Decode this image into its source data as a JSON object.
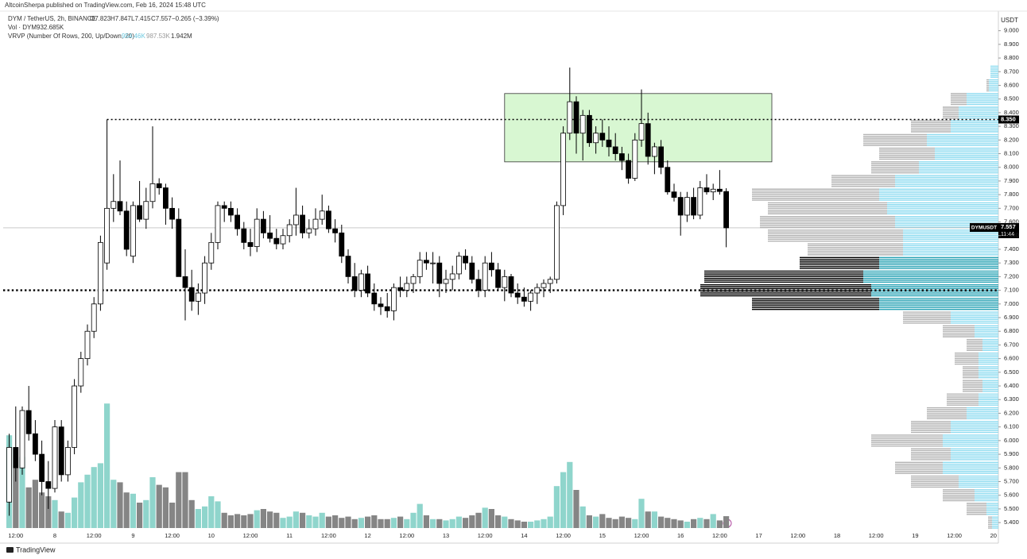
{
  "chart_data": {
    "type": "candlestick",
    "publisher": "AltcoinSherpa published on TradingView.com, Feb 16, 2024 15:48 UTC",
    "legend": {
      "symbol": "DYM / TetherUS, 2h, BINANCE",
      "open": "O7.823",
      "high": "H7.847",
      "low": "L7.415",
      "close": "C7.557",
      "change": "−0.265 (−3.39%)"
    },
    "volume_legend": {
      "name": "Vol · DYM",
      "value": "932.685K"
    },
    "profile_legend": {
      "name": "VRVP (Number Of Rows, 200, Up/Down, 20)",
      "up": "954.46K",
      "down": "987.53K",
      "total": "1.942M"
    },
    "currency": "USDT",
    "footer": "TradingView",
    "categories": [
      null,
      "12:00",
      null,
      null,
      null,
      null,
      null,
      "8",
      null,
      null,
      null,
      null,
      null,
      "12:00",
      null,
      null,
      null,
      null,
      null,
      "9",
      null,
      null,
      null,
      null,
      null,
      "12:00",
      null,
      null,
      null,
      null,
      null,
      "10",
      null,
      null,
      null,
      null,
      null,
      "12:00",
      null,
      null,
      null,
      null,
      null,
      "11",
      null,
      null,
      null,
      null,
      null,
      "12:00",
      null,
      null,
      null,
      null,
      null,
      "12",
      null,
      null,
      null,
      null,
      null,
      "12:00",
      null,
      null,
      null,
      null,
      null,
      "13",
      null,
      null,
      null,
      null,
      null,
      "12:00",
      null,
      null,
      null,
      null,
      null,
      "14",
      null,
      null,
      null,
      null,
      null,
      "12:00",
      null,
      null,
      null,
      null,
      null,
      "15",
      null,
      null,
      null,
      null,
      null,
      "12:00",
      null,
      null,
      null,
      null,
      null,
      "16",
      null,
      null,
      null,
      null,
      null,
      "12:00",
      null,
      null,
      null,
      null,
      null,
      "17",
      null,
      null,
      null,
      null,
      null,
      "12:00",
      null,
      null,
      null,
      null,
      null,
      "18",
      null,
      null,
      null,
      null,
      null,
      "12:00",
      null,
      null,
      null,
      null,
      null,
      "19",
      null,
      null,
      null,
      null,
      null,
      "12:00",
      null,
      null,
      null,
      null,
      null,
      "20"
    ],
    "candles": [
      [
        5.55,
        6.05,
        5.45,
        5.95
      ],
      [
        5.95,
        6.25,
        5.7,
        5.8
      ],
      [
        5.8,
        6.25,
        5.75,
        6.22
      ],
      [
        6.22,
        6.4,
        6.0,
        6.05
      ],
      [
        6.05,
        6.15,
        5.85,
        5.9
      ],
      [
        5.9,
        6.0,
        5.6,
        5.7
      ],
      [
        5.7,
        5.85,
        5.5,
        5.65
      ],
      [
        5.65,
        6.15,
        5.62,
        6.1
      ],
      [
        6.1,
        6.15,
        5.7,
        5.75
      ],
      [
        5.75,
        6.0,
        5.7,
        5.95
      ],
      [
        5.95,
        6.45,
        5.9,
        6.4
      ],
      [
        6.4,
        6.65,
        6.35,
        6.6
      ],
      [
        6.6,
        6.85,
        6.55,
        6.8
      ],
      [
        6.8,
        7.05,
        6.75,
        7.0
      ],
      [
        7.0,
        7.5,
        6.95,
        7.45
      ],
      [
        7.3,
        8.35,
        7.25,
        7.7
      ],
      [
        7.7,
        7.95,
        7.6,
        7.75
      ],
      [
        7.75,
        8.05,
        7.65,
        7.68
      ],
      [
        7.68,
        7.75,
        7.35,
        7.4
      ],
      [
        7.35,
        7.75,
        7.3,
        7.72
      ],
      [
        7.72,
        7.9,
        7.6,
        7.62
      ],
      [
        7.62,
        7.85,
        7.55,
        7.75
      ],
      [
        7.75,
        8.3,
        7.7,
        7.88
      ],
      [
        7.88,
        7.92,
        7.8,
        7.85
      ],
      [
        7.85,
        7.88,
        7.58,
        7.7
      ],
      [
        7.7,
        7.78,
        7.55,
        7.62
      ],
      [
        7.62,
        7.7,
        7.2,
        7.2
      ],
      [
        7.2,
        7.4,
        6.88,
        7.12
      ],
      [
        7.12,
        7.25,
        6.95,
        7.02
      ],
      [
        7.02,
        7.15,
        6.92,
        7.08
      ],
      [
        7.08,
        7.35,
        7.0,
        7.3
      ],
      [
        7.3,
        7.52,
        7.25,
        7.45
      ],
      [
        7.45,
        7.75,
        7.4,
        7.72
      ],
      [
        7.72,
        7.75,
        7.6,
        7.7
      ],
      [
        7.7,
        7.75,
        7.6,
        7.65
      ],
      [
        7.65,
        7.7,
        7.5,
        7.55
      ],
      [
        7.55,
        7.6,
        7.4,
        7.45
      ],
      [
        7.45,
        7.55,
        7.35,
        7.42
      ],
      [
        7.42,
        7.7,
        7.38,
        7.62
      ],
      [
        7.62,
        7.68,
        7.48,
        7.52
      ],
      [
        7.52,
        7.65,
        7.45,
        7.48
      ],
      [
        7.48,
        7.55,
        7.4,
        7.44
      ],
      [
        7.44,
        7.55,
        7.4,
        7.5
      ],
      [
        7.5,
        7.62,
        7.45,
        7.58
      ],
      [
        7.58,
        7.85,
        7.5,
        7.65
      ],
      [
        7.65,
        7.72,
        7.48,
        7.52
      ],
      [
        7.52,
        7.62,
        7.48,
        7.55
      ],
      [
        7.55,
        7.7,
        7.5,
        7.62
      ],
      [
        7.62,
        7.8,
        7.58,
        7.68
      ],
      [
        7.68,
        7.72,
        7.52,
        7.55
      ],
      [
        7.55,
        7.62,
        7.45,
        7.52
      ],
      [
        7.52,
        7.58,
        7.3,
        7.35
      ],
      [
        7.35,
        7.4,
        7.15,
        7.2
      ],
      [
        7.2,
        7.3,
        7.05,
        7.1
      ],
      [
        7.1,
        7.25,
        7.05,
        7.22
      ],
      [
        7.22,
        7.28,
        7.05,
        7.08
      ],
      [
        7.08,
        7.15,
        6.95,
        7.0
      ],
      [
        7.0,
        7.05,
        6.92,
        6.98
      ],
      [
        6.98,
        7.08,
        6.9,
        6.95
      ],
      [
        6.95,
        7.15,
        6.88,
        7.12
      ],
      [
        7.12,
        7.2,
        7.05,
        7.1
      ],
      [
        7.1,
        7.2,
        7.05,
        7.15
      ],
      [
        7.15,
        7.22,
        7.08,
        7.2
      ],
      [
        7.2,
        7.38,
        7.15,
        7.32
      ],
      [
        7.32,
        7.38,
        7.25,
        7.3
      ],
      [
        7.3,
        7.38,
        7.15,
        7.3
      ],
      [
        7.3,
        7.35,
        7.05,
        7.15
      ],
      [
        7.15,
        7.25,
        7.08,
        7.18
      ],
      [
        7.18,
        7.28,
        7.1,
        7.22
      ],
      [
        7.22,
        7.38,
        7.18,
        7.35
      ],
      [
        7.35,
        7.4,
        7.25,
        7.3
      ],
      [
        7.3,
        7.35,
        7.15,
        7.18
      ],
      [
        7.18,
        7.25,
        7.05,
        7.1
      ],
      [
        7.1,
        7.35,
        7.05,
        7.3
      ],
      [
        7.3,
        7.38,
        7.2,
        7.25
      ],
      [
        7.25,
        7.3,
        7.1,
        7.12
      ],
      [
        7.12,
        7.25,
        7.02,
        7.2
      ],
      [
        7.2,
        7.22,
        7.05,
        7.08
      ],
      [
        7.08,
        7.15,
        7.0,
        7.05
      ],
      [
        7.05,
        7.12,
        6.98,
        7.02
      ],
      [
        7.02,
        7.1,
        6.95,
        7.08
      ],
      [
        7.08,
        7.15,
        7.0,
        7.12
      ],
      [
        7.12,
        7.18,
        7.05,
        7.15
      ],
      [
        7.15,
        7.2,
        7.08,
        7.18
      ],
      [
        7.18,
        7.75,
        7.15,
        7.72
      ],
      [
        7.72,
        8.3,
        7.65,
        8.25
      ],
      [
        8.25,
        8.73,
        8.2,
        8.48
      ],
      [
        8.48,
        8.52,
        8.1,
        8.25
      ],
      [
        8.25,
        8.42,
        8.05,
        8.38
      ],
      [
        8.38,
        8.42,
        8.15,
        8.18
      ],
      [
        8.18,
        8.3,
        8.1,
        8.25
      ],
      [
        8.25,
        8.35,
        8.15,
        8.2
      ],
      [
        8.2,
        8.3,
        8.08,
        8.15
      ],
      [
        8.15,
        8.25,
        8.05,
        8.1
      ],
      [
        8.1,
        8.15,
        7.98,
        8.05
      ],
      [
        8.05,
        8.1,
        7.88,
        7.92
      ],
      [
        7.92,
        8.25,
        7.9,
        8.2
      ],
      [
        8.2,
        8.57,
        8.15,
        8.32
      ],
      [
        8.32,
        8.4,
        8.02,
        8.08
      ],
      [
        8.08,
        8.18,
        7.95,
        8.15
      ],
      [
        8.15,
        8.2,
        7.95,
        8.0
      ],
      [
        8.0,
        8.05,
        7.8,
        7.82
      ],
      [
        7.82,
        7.88,
        7.75,
        7.78
      ],
      [
        7.78,
        7.82,
        7.5,
        7.65
      ],
      [
        7.65,
        7.82,
        7.6,
        7.78
      ],
      [
        7.78,
        7.85,
        7.62,
        7.65
      ],
      [
        7.65,
        7.9,
        7.62,
        7.85
      ],
      [
        7.85,
        7.95,
        7.8,
        7.82
      ],
      [
        7.82,
        7.88,
        7.76,
        7.84
      ],
      [
        7.84,
        7.98,
        7.8,
        7.823
      ],
      [
        7.823,
        7.847,
        7.415,
        7.557
      ],
      null,
      null,
      null,
      null,
      null,
      null,
      null,
      null,
      null,
      null,
      null,
      null,
      null,
      null,
      null,
      null,
      null,
      null,
      null,
      null,
      null,
      null,
      null,
      null,
      null,
      null,
      null,
      null,
      null,
      null,
      null,
      null,
      null,
      null,
      null,
      null,
      null,
      null,
      null,
      null,
      null
    ],
    "volume": [
      7300,
      4700,
      5600,
      3200,
      3800,
      2800,
      2500,
      2200,
      1300,
      1200,
      2400,
      3600,
      4200,
      4800,
      5100,
      9800,
      3800,
      3600,
      2800,
      2700,
      2000,
      2200,
      4000,
      3400,
      3200,
      2000,
      4400,
      4400,
      2200,
      1500,
      1700,
      2500,
      2100,
      1200,
      1000,
      1100,
      1000,
      1100,
      1400,
      1500,
      1300,
      1200,
      800,
      900,
      1300,
      1200,
      1000,
      900,
      1200,
      900,
      1000,
      800,
      900,
      700,
      800,
      900,
      1000,
      700,
      700,
      800,
      900,
      700,
      1200,
      1900,
      1000,
      700,
      700,
      600,
      700,
      900,
      800,
      1000,
      1200,
      1600,
      1500,
      1000,
      900,
      700,
      600,
      500,
      500,
      600,
      700,
      900,
      3300,
      4400,
      5200,
      3000,
      1700,
      1000,
      900,
      1100,
      800,
      700,
      900,
      800,
      700,
      2300,
      1300,
      1300,
      900,
      800,
      700,
      600,
      500,
      700,
      800,
      700,
      1100,
      600,
      932.685,
      null,
      null,
      null,
      null,
      null,
      null,
      null,
      null,
      null,
      null,
      null,
      null,
      null,
      null,
      null,
      null,
      null,
      null,
      null,
      null,
      null,
      null,
      null,
      null,
      null,
      null,
      null,
      null,
      null,
      null,
      null,
      null,
      null,
      null,
      null,
      null,
      null,
      null,
      null,
      null,
      null
    ],
    "up_color": "#ffffff",
    "down_color": "#000000",
    "candle_outline": "#000000",
    "volume_up_color": "#8fd5cc",
    "volume_down_color": "#858585",
    "vlim": [
      0,
      11000
    ],
    "ylim": [
      5.36,
      9.12
    ],
    "yticks": [
      {
        "value": 9.0,
        "label": "9.000"
      },
      {
        "value": 8.9,
        "label": "8.900"
      },
      {
        "value": 8.8,
        "label": "8.800"
      },
      {
        "value": 8.7,
        "label": "8.700"
      },
      {
        "value": 8.6,
        "label": "8.600"
      },
      {
        "value": 8.5,
        "label": "8.500"
      },
      {
        "value": 8.4,
        "label": "8.400"
      },
      {
        "value": 8.3,
        "label": "8.300"
      },
      {
        "value": 8.2,
        "label": "8.200"
      },
      {
        "value": 8.1,
        "label": "8.100"
      },
      {
        "value": 8.0,
        "label": "8.000"
      },
      {
        "value": 7.9,
        "label": "7.900"
      },
      {
        "value": 7.8,
        "label": "7.800"
      },
      {
        "value": 7.7,
        "label": "7.700"
      },
      {
        "value": 7.6,
        "label": "7.600"
      },
      {
        "value": 7.5,
        "label": "7.500"
      },
      {
        "value": 7.4,
        "label": "7.400"
      },
      {
        "value": 7.3,
        "label": "7.300"
      },
      {
        "value": 7.2,
        "label": "7.200"
      },
      {
        "value": 7.1,
        "label": "7.100"
      },
      {
        "value": 7.0,
        "label": "7.000"
      },
      {
        "value": 6.9,
        "label": "6.900"
      },
      {
        "value": 6.8,
        "label": "6.800"
      },
      {
        "value": 6.7,
        "label": "6.700"
      },
      {
        "value": 6.6,
        "label": "6.600"
      },
      {
        "value": 6.5,
        "label": "6.500"
      },
      {
        "value": 6.4,
        "label": "6.400"
      },
      {
        "value": 6.3,
        "label": "6.300"
      },
      {
        "value": 6.2,
        "label": "6.200"
      },
      {
        "value": 6.1,
        "label": "6.100"
      },
      {
        "value": 6.0,
        "label": "6.000"
      },
      {
        "value": 5.9,
        "label": "5.900"
      },
      {
        "value": 5.8,
        "label": "5.800"
      },
      {
        "value": 5.7,
        "label": "5.700"
      },
      {
        "value": 5.6,
        "label": "5.600"
      },
      {
        "value": 5.5,
        "label": "5.500"
      },
      {
        "value": 5.4,
        "label": "5.400"
      }
    ],
    "hlines": [
      {
        "value": 8.35,
        "label": "8.350",
        "from": 15
      },
      {
        "value": 7.1,
        "from": 0
      }
    ],
    "last_price": {
      "symbol": "DYMUSDT",
      "value": 7.557,
      "countdown": "11:44"
    },
    "box": {
      "from": 76,
      "to": 117,
      "low": 8.04,
      "high": 8.54,
      "color": "#d8f7d2"
    },
    "profile": {
      "xlim": [
        0,
        58500
      ],
      "up_color": "#8fdcf0",
      "down_color": "#b3b3b3",
      "va_up_color": "#2aa3b5",
      "va_down_color": "#000000",
      "value_area": [
        7.0,
        7.3
      ],
      "rows": [
        {
          "price": 8.7,
          "up": 1500,
          "down": 0
        },
        {
          "price": 8.6,
          "up": 1800,
          "down": 450
        },
        {
          "price": 8.5,
          "up": 6000,
          "down": 3000
        },
        {
          "price": 8.4,
          "up": 7500,
          "down": 3000
        },
        {
          "price": 8.3,
          "up": 9000,
          "down": 7500
        },
        {
          "price": 8.2,
          "up": 13500,
          "down": 12000
        },
        {
          "price": 8.1,
          "up": 12000,
          "down": 10500
        },
        {
          "price": 8.0,
          "up": 15000,
          "down": 9000
        },
        {
          "price": 7.9,
          "up": 19500,
          "down": 12000
        },
        {
          "price": 7.8,
          "up": 22500,
          "down": 24000
        },
        {
          "price": 7.7,
          "up": 21000,
          "down": 22500
        },
        {
          "price": 7.6,
          "up": 19500,
          "down": 25500
        },
        {
          "price": 7.5,
          "up": 18000,
          "down": 25500
        },
        {
          "price": 7.4,
          "up": 18000,
          "down": 18000
        },
        {
          "price": 7.3,
          "up": 22500,
          "down": 15000
        },
        {
          "price": 7.2,
          "up": 25500,
          "down": 30000
        },
        {
          "price": 7.1,
          "up": 24000,
          "down": 32250
        },
        {
          "price": 7.0,
          "up": 22500,
          "down": 24000
        },
        {
          "price": 6.9,
          "up": 9000,
          "down": 9000
        },
        {
          "price": 6.8,
          "up": 4500,
          "down": 6000
        },
        {
          "price": 6.7,
          "up": 3000,
          "down": 3000
        },
        {
          "price": 6.6,
          "up": 3750,
          "down": 4500
        },
        {
          "price": 6.5,
          "up": 3750,
          "down": 3000
        },
        {
          "price": 6.4,
          "up": 3000,
          "down": 3750
        },
        {
          "price": 6.3,
          "up": 3750,
          "down": 6000
        },
        {
          "price": 6.2,
          "up": 6000,
          "down": 7500
        },
        {
          "price": 6.1,
          "up": 9000,
          "down": 7500
        },
        {
          "price": 6.0,
          "up": 10500,
          "down": 13500
        },
        {
          "price": 5.9,
          "up": 9000,
          "down": 7500
        },
        {
          "price": 5.8,
          "up": 10500,
          "down": 9000
        },
        {
          "price": 5.7,
          "up": 7500,
          "down": 9000
        },
        {
          "price": 5.6,
          "up": 4500,
          "down": 6000
        },
        {
          "price": 5.5,
          "up": 2250,
          "down": 3750
        },
        {
          "price": 5.4,
          "up": 1200,
          "down": 750
        }
      ]
    }
  }
}
